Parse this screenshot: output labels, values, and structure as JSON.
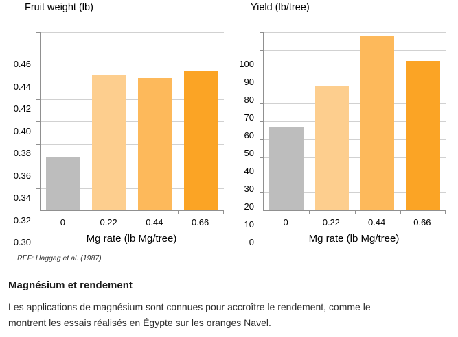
{
  "chart_data": [
    {
      "type": "bar",
      "title": "Fruit weight (lb)",
      "xlabel": "Mg rate (lb Mg/tree)",
      "ylabel": "",
      "categories": [
        "0",
        "0.22",
        "0.44",
        "0.66"
      ],
      "values": [
        0.348,
        0.421,
        0.419,
        0.425
      ],
      "ylim": [
        0.3,
        0.46
      ],
      "ytick_labels": [
        "0.46",
        "0.44",
        "0.42",
        "0.40",
        "0.38",
        "0.36",
        "0.34",
        "0.32",
        "0.30"
      ],
      "bar_colors": [
        "#BDBDBD",
        "#FDCE8E",
        "#FDB95B",
        "#FBA425"
      ],
      "grid": true,
      "legend_position": "none"
    },
    {
      "type": "bar",
      "title": "Yield (lb/tree)",
      "xlabel": "Mg rate (lb Mg/tree)",
      "ylabel": "",
      "categories": [
        "0",
        "0.22",
        "0.44",
        "0.66"
      ],
      "values": [
        47,
        70,
        98,
        84
      ],
      "ylim": [
        0,
        100
      ],
      "ytick_labels": [
        "100",
        "90",
        "80",
        "70",
        "60",
        "50",
        "40",
        "30",
        "20",
        "10",
        "0"
      ],
      "bar_colors": [
        "#BDBDBD",
        "#FDCE8E",
        "#FDB95B",
        "#FBA425"
      ],
      "grid": true,
      "legend_position": "none"
    }
  ],
  "footer": {
    "reference": "REF: Haggag et al. (1987)",
    "heading": "Magnésium et rendement",
    "body": "Les applications de magnésium sont connues pour accroître le rendement, comme le montrent les essais réalisés en Égypte sur les oranges Navel."
  },
  "style_colors": {
    "axis": "#909090",
    "gridline": "#D1D1D1"
  }
}
